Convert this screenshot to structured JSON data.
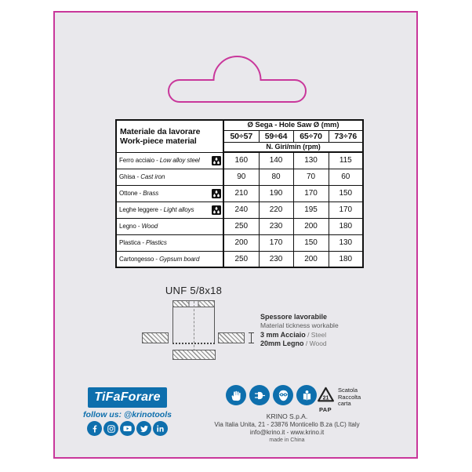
{
  "table": {
    "material_header_line1": "Materiale da lavorare",
    "material_header_line2": "Work-piece material",
    "diameter_header": "Ø Sega - Hole Saw Ø (mm)",
    "diameter_ranges": [
      "50÷57",
      "59÷64",
      "65÷70",
      "73÷76"
    ],
    "speed_unit_header": "N. Giri/min (rpm)",
    "label_separator": " - ",
    "rows": [
      {
        "material_it": "Ferro acciaio",
        "material_en": "Low alloy steel",
        "lubricant_icon": true,
        "rpm": [
          "160",
          "140",
          "130",
          "115"
        ]
      },
      {
        "material_it": "Ghisa",
        "material_en": "Cast iron",
        "lubricant_icon": false,
        "rpm": [
          "90",
          "80",
          "70",
          "60"
        ]
      },
      {
        "material_it": "Ottone",
        "material_en": "Brass",
        "lubricant_icon": true,
        "rpm": [
          "210",
          "190",
          "170",
          "150"
        ]
      },
      {
        "material_it": "Leghe leggere",
        "material_en": "Light alloys",
        "lubricant_icon": true,
        "rpm": [
          "240",
          "220",
          "195",
          "170"
        ]
      },
      {
        "material_it": "Legno",
        "material_en": "Wood",
        "lubricant_icon": false,
        "rpm": [
          "250",
          "230",
          "200",
          "180"
        ]
      },
      {
        "material_it": "Plastica",
        "material_en": "Plastics",
        "lubricant_icon": false,
        "rpm": [
          "200",
          "170",
          "150",
          "130"
        ]
      },
      {
        "material_it": "Cartongesso",
        "material_en": "Gypsum board",
        "lubricant_icon": false,
        "rpm": [
          "250",
          "230",
          "200",
          "180"
        ]
      }
    ]
  },
  "drawing": {
    "thread_label": "UNF 5/8x18",
    "spec_title_it": "Spessore lavorabile",
    "spec_title_en": "Material tickness workable",
    "spec_steel_value": "3 mm Acciaio",
    "spec_steel_suffix": " / Steel",
    "spec_wood_value": "20mm Legno",
    "spec_wood_suffix": " / Wood"
  },
  "footer": {
    "logo_text": "TiFaForare",
    "follow_text": "follow us: @krinotools",
    "social_icons": [
      "facebook",
      "instagram",
      "youtube",
      "twitter",
      "linkedin"
    ],
    "safety_icons": [
      "wear-protective-gloves",
      "disconnect-mains-plug",
      "wear-eye-protection",
      "read-instruction-manual"
    ],
    "recycling": {
      "code": "21",
      "material": "PAP",
      "lines": [
        "Scatola",
        "Raccolta",
        "carta"
      ]
    },
    "company": "KRINO S.p.A.",
    "address": "Via Italia Unita, 21 - 23876 Monticello B.za (LC) Italy",
    "contacts": "info@krino.it - www.krino.it",
    "origin": "made in China"
  },
  "colors": {
    "magenta": "#c9379b",
    "blue": "#0e6fad",
    "panel_bg": "#e9e8ec"
  }
}
